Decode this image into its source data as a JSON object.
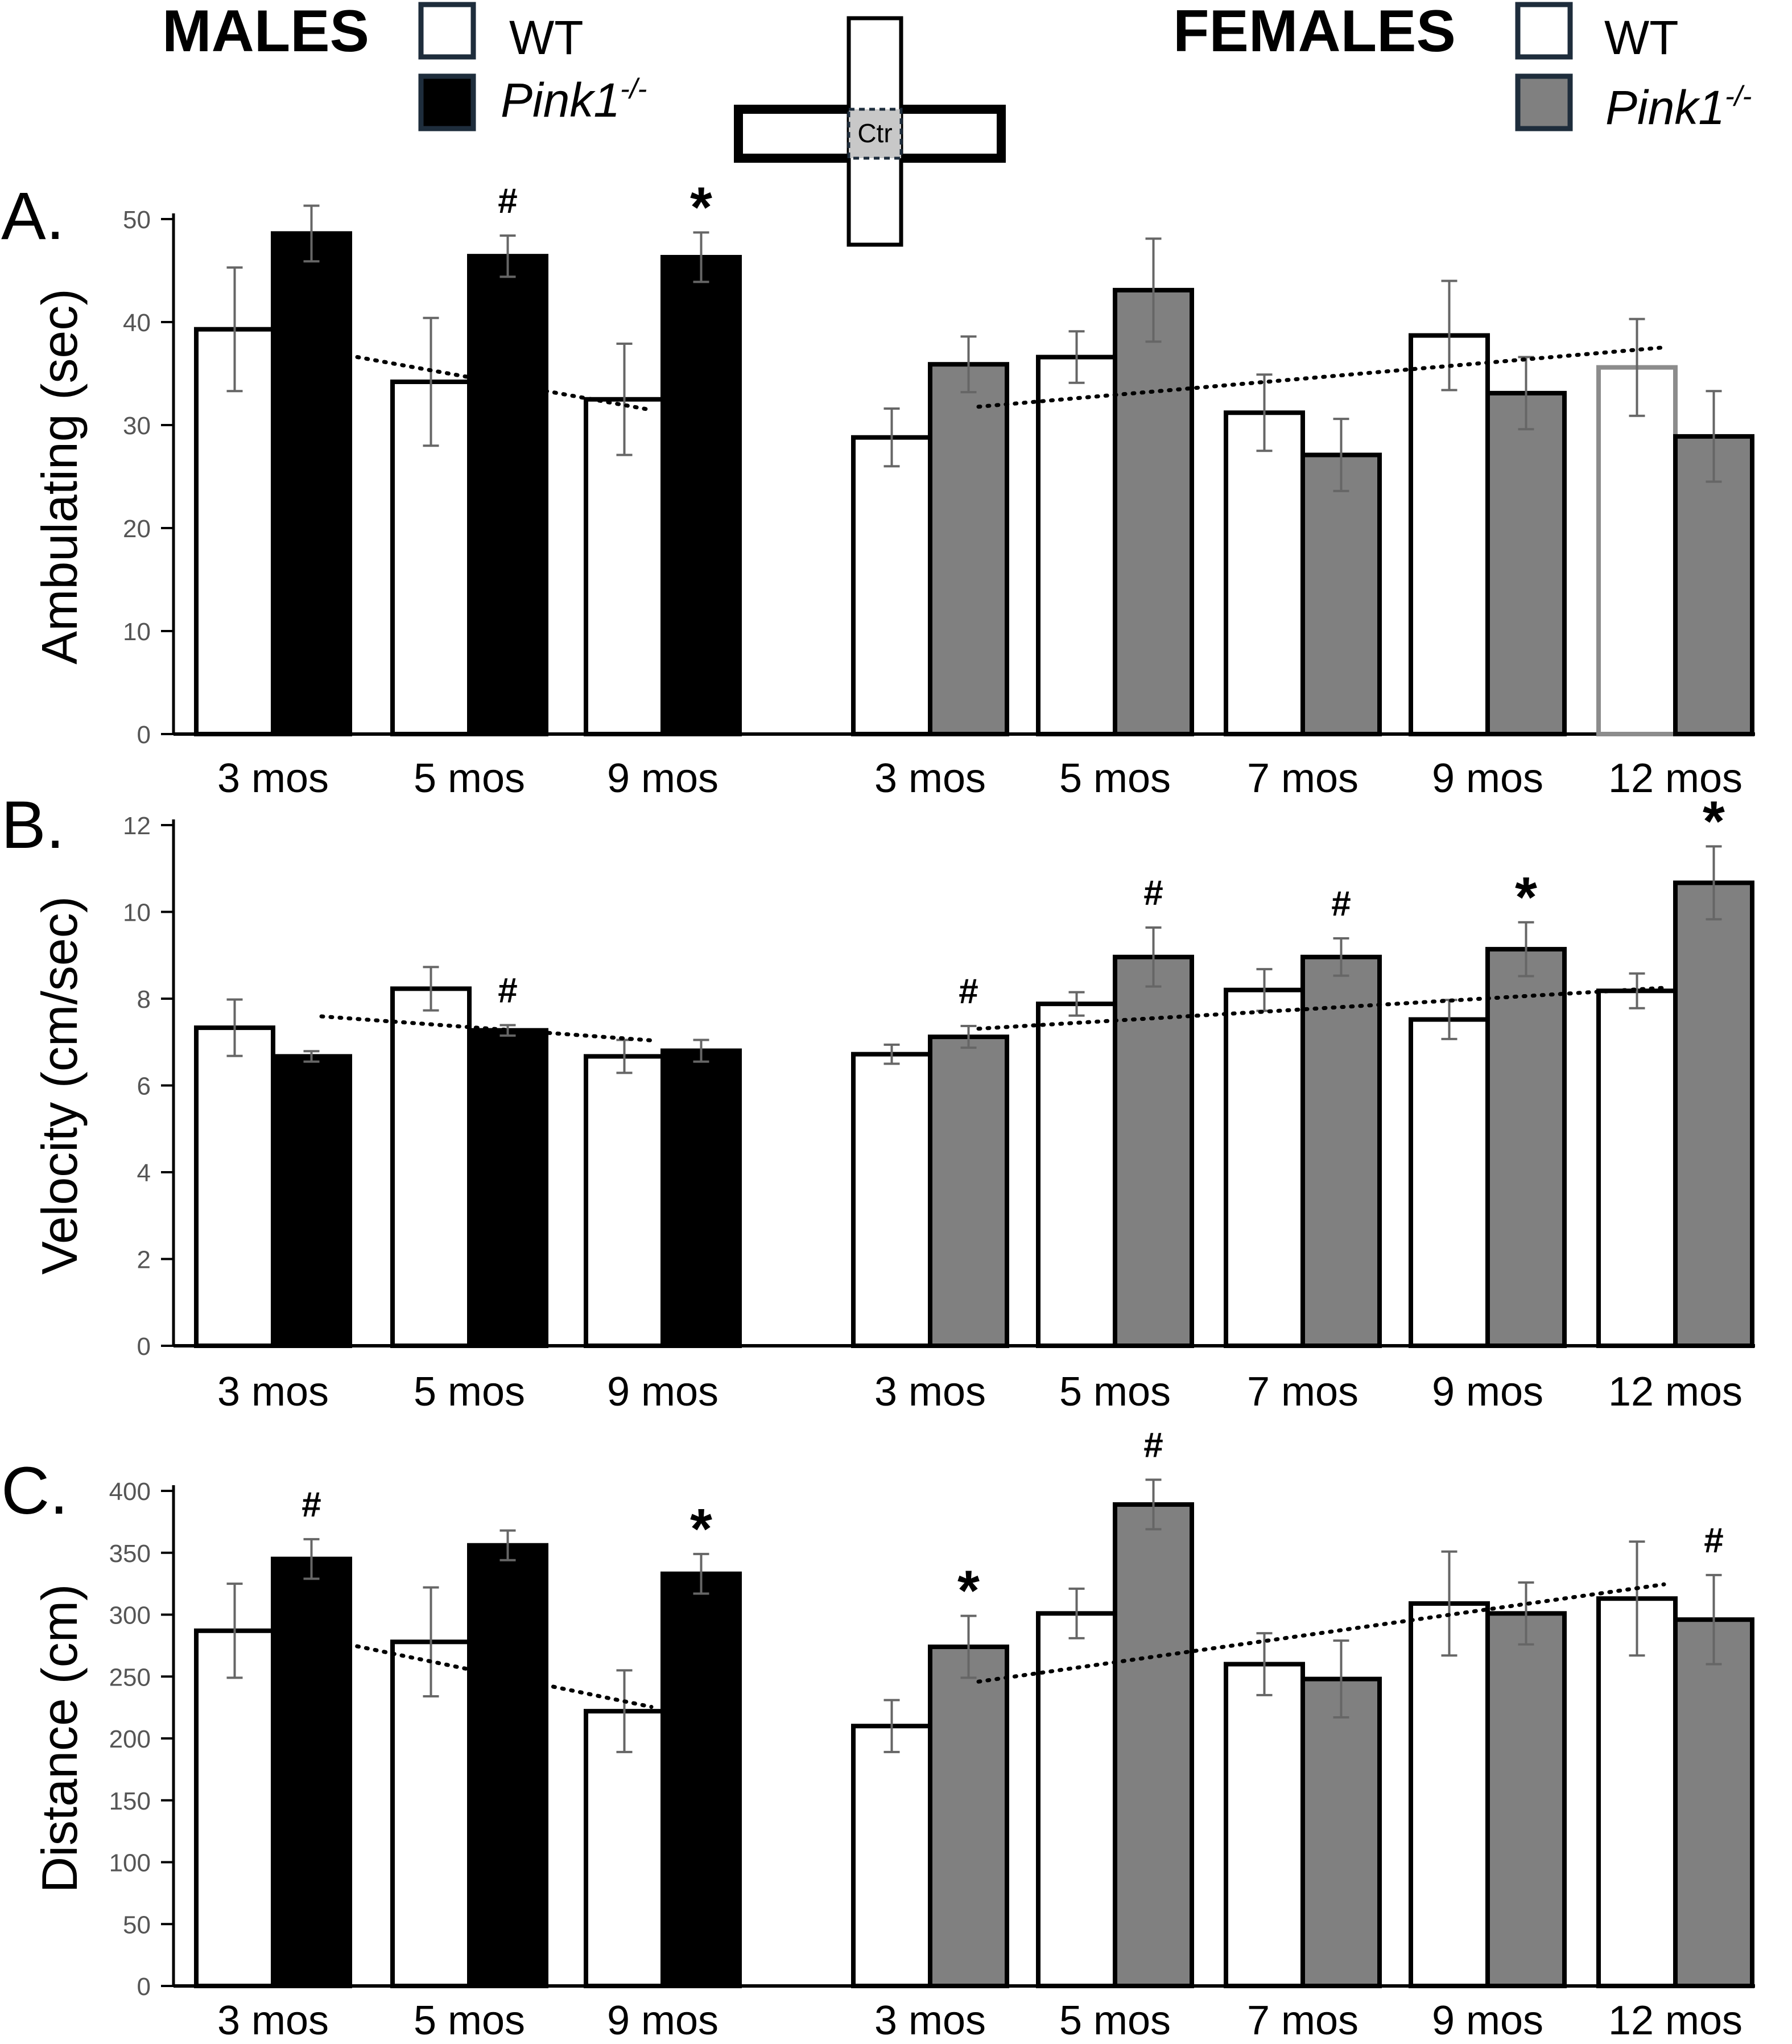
{
  "legend": {
    "males_title": "MALES",
    "females_title": "FEMALES",
    "wt_label": "WT",
    "ko_label_main": "Pink1",
    "ko_label_sup": "-/-"
  },
  "maze": {
    "center_label": "Ctr"
  },
  "colors": {
    "wt_fill": "#ffffff",
    "male_ko_fill": "#000000",
    "female_ko_fill": "#808080",
    "female_wt_12mo_outline": "#8c8c8c",
    "error_bar": "#666666",
    "trend_line": "#000000",
    "center_fill": "#c8c8c8",
    "legend_box_border": "#1e2d3c"
  },
  "chart_data": [
    {
      "panel_label": "A.",
      "type": "bar",
      "ylabel": "Ambulating (sec)",
      "ylim": [
        0,
        50
      ],
      "yticks": [
        "0",
        "10",
        "20",
        "30",
        "40",
        "50"
      ],
      "series_names": [
        "WT",
        "Pink1-/-"
      ],
      "males": {
        "categories": [
          "3 mos",
          "5 mos",
          "9 mos"
        ],
        "wt": [
          39.3,
          34.2,
          32.5
        ],
        "wt_err": [
          6.0,
          6.2,
          5.4
        ],
        "ko": [
          48.6,
          46.4,
          46.3
        ],
        "ko_err": [
          2.7,
          2.0,
          2.4
        ],
        "markers": [
          "",
          "#",
          "*"
        ]
      },
      "females": {
        "categories": [
          "3 mos",
          "5 mos",
          "7 mos",
          "9 mos",
          "12 mos"
        ],
        "wt": [
          28.8,
          36.6,
          31.2,
          38.7,
          35.6
        ],
        "wt_err": [
          2.8,
          2.5,
          3.7,
          5.3,
          4.7
        ],
        "ko": [
          35.9,
          43.1,
          27.1,
          33.1,
          28.9
        ],
        "ko_err": [
          2.7,
          5.0,
          3.5,
          3.5,
          4.4
        ],
        "markers": [
          "",
          "",
          "",
          "",
          ""
        ]
      }
    },
    {
      "panel_label": "B.",
      "type": "bar",
      "ylabel": "Velocity (cm/sec)",
      "ylim": [
        0,
        12
      ],
      "yticks": [
        "0",
        "2",
        "4",
        "6",
        "8",
        "10",
        "12"
      ],
      "series_names": [
        "WT",
        "Pink1-/-"
      ],
      "males": {
        "categories": [
          "3 mos",
          "5 mos",
          "9 mos"
        ],
        "wt": [
          7.33,
          8.23,
          6.67
        ],
        "wt_err": [
          0.65,
          0.5,
          0.38
        ],
        "ko": [
          6.67,
          7.27,
          6.8
        ],
        "ko_err": [
          0.12,
          0.12,
          0.25
        ],
        "markers": [
          "",
          "#",
          ""
        ]
      },
      "females": {
        "categories": [
          "3 mos",
          "5 mos",
          "7 mos",
          "9 mos",
          "12 mos"
        ],
        "wt": [
          6.72,
          7.88,
          8.2,
          7.52,
          8.18
        ],
        "wt_err": [
          0.22,
          0.27,
          0.48,
          0.45,
          0.4
        ],
        "ko": [
          7.12,
          8.96,
          8.96,
          9.14,
          10.67
        ],
        "ko_err": [
          0.25,
          0.68,
          0.43,
          0.62,
          0.84
        ],
        "markers": [
          "#",
          "#",
          "#",
          "*",
          "*"
        ]
      }
    },
    {
      "panel_label": "C.",
      "type": "bar",
      "ylabel": "Distance (cm)",
      "ylim": [
        0,
        400
      ],
      "yticks": [
        "0",
        "50",
        "100",
        "150",
        "200",
        "250",
        "300",
        "350",
        "400"
      ],
      "series_names": [
        "WT",
        "Pink1-/-"
      ],
      "males": {
        "categories": [
          "3 mos",
          "5 mos",
          "9 mos"
        ],
        "wt": [
          287,
          278,
          222
        ],
        "wt_err": [
          38,
          44,
          33
        ],
        "ko": [
          345,
          356,
          333
        ],
        "ko_err": [
          16,
          12,
          16
        ],
        "markers": [
          "#",
          "",
          "*"
        ]
      },
      "females": {
        "categories": [
          "3 mos",
          "5 mos",
          "7 mos",
          "9 mos",
          "12 mos"
        ],
        "wt": [
          210,
          301,
          260,
          309,
          313
        ],
        "wt_err": [
          21,
          20,
          25,
          42,
          46
        ],
        "ko": [
          274,
          389,
          248,
          301,
          296
        ],
        "ko_err": [
          25,
          20,
          31,
          25,
          36
        ],
        "markers": [
          "*",
          "#",
          "",
          "",
          "#"
        ]
      }
    }
  ]
}
